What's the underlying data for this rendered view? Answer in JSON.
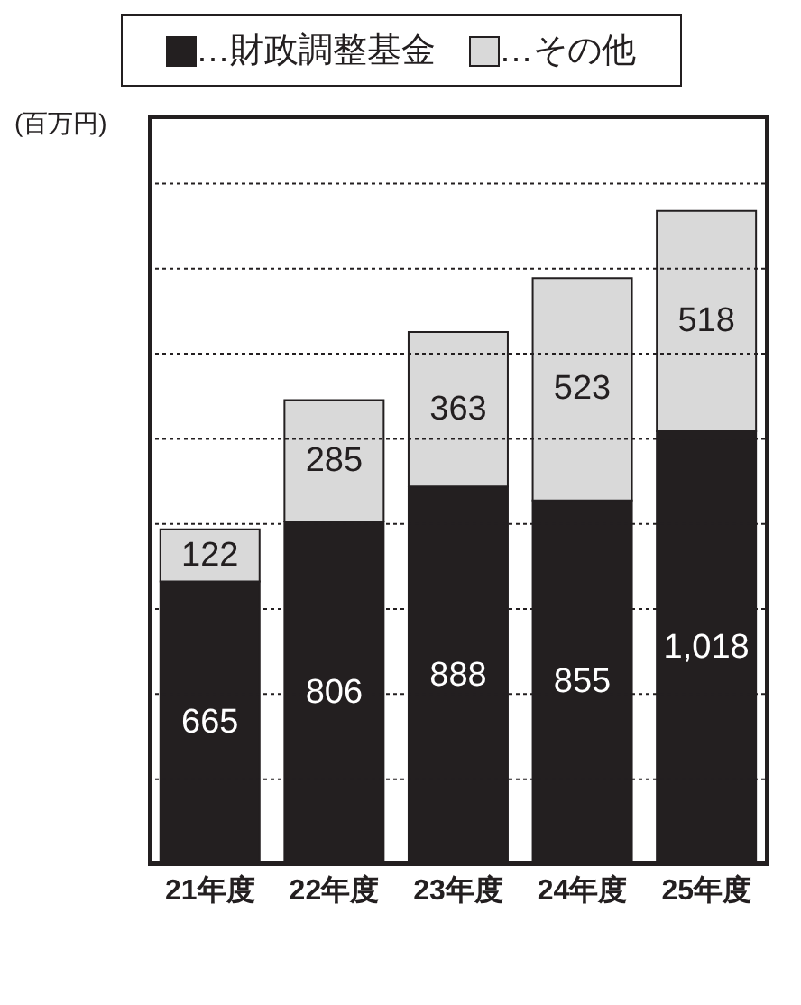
{
  "chart_data": {
    "type": "bar",
    "stacked": true,
    "ylabel": "(百万円)",
    "categories": [
      "21年度",
      "22年度",
      "23年度",
      "24年度",
      "25年度"
    ],
    "series": [
      {
        "name": "…財政調整基金",
        "color": "#231f20",
        "values": [
          665,
          806,
          888,
          855,
          1018
        ],
        "value_labels": [
          "665",
          "806",
          "888",
          "855",
          "1,018"
        ]
      },
      {
        "name": "…その他",
        "color": "#d9d9d9",
        "values": [
          122,
          285,
          363,
          523,
          518
        ]
      }
    ],
    "ylim": [
      0,
      1760
    ],
    "yticks": [
      {
        "value": 200,
        "label": null
      },
      {
        "value": 400,
        "label": null
      },
      {
        "value": 600,
        "label": null
      },
      {
        "value": 800,
        "label": null
      },
      {
        "value": 1000,
        "label": null
      },
      {
        "value": 1200,
        "label": null
      },
      {
        "value": 1400,
        "label": null
      },
      {
        "value": 1600,
        "label": null
      }
    ],
    "grid": "y",
    "legend": "top",
    "tick_labels": "x",
    "data_labels": true
  }
}
